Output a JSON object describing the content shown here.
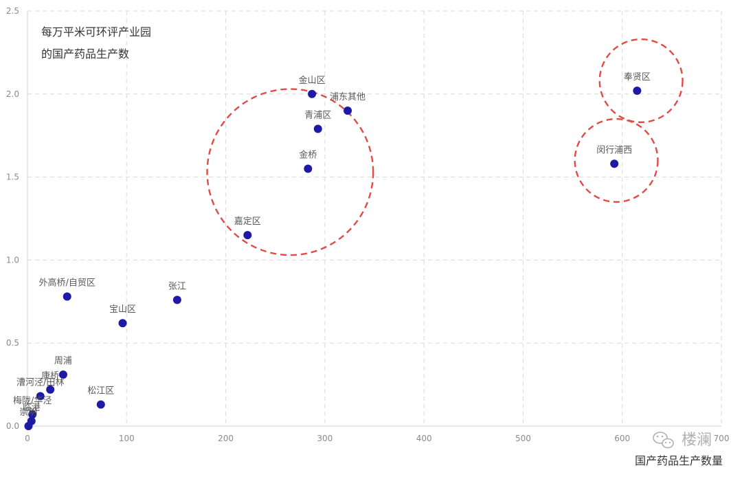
{
  "chart_data": {
    "type": "scatter",
    "title": "",
    "xlabel": "国产药品生产数量",
    "ylabel": "",
    "xlim": [
      0,
      700
    ],
    "ylim": [
      0,
      2.5
    ],
    "x_ticks": [
      0,
      100,
      200,
      300,
      400,
      500,
      600,
      700
    ],
    "y_ticks": [
      0.0,
      0.5,
      1.0,
      1.5,
      2.0,
      2.5
    ],
    "x_tick_labels": [
      "0",
      "100",
      "200",
      "300",
      "400",
      "500",
      "600",
      "700"
    ],
    "y_tick_labels": [
      "0.0",
      "0.5",
      "1.0",
      "1.5",
      "2.0",
      "2.5"
    ],
    "grid": true,
    "point_color": "#1f1aa6",
    "circle_color": "#e04b45",
    "annotation": [
      "每万平米可环评产业园",
      "的国产药品生产数"
    ],
    "points": [
      {
        "label": "奉贤区",
        "x": 615,
        "y": 2.02
      },
      {
        "label": "闵行浦西",
        "x": 592,
        "y": 1.58
      },
      {
        "label": "金山区",
        "x": 287,
        "y": 2.0
      },
      {
        "label": "浦东其他",
        "x": 323,
        "y": 1.9
      },
      {
        "label": "青浦区",
        "x": 293,
        "y": 1.79
      },
      {
        "label": "金桥",
        "x": 283,
        "y": 1.55
      },
      {
        "label": "嘉定区",
        "x": 222,
        "y": 1.15
      },
      {
        "label": "外高桥/自贸区",
        "x": 40,
        "y": 0.78
      },
      {
        "label": "张江",
        "x": 151,
        "y": 0.76
      },
      {
        "label": "宝山区",
        "x": 96,
        "y": 0.62
      },
      {
        "label": "周浦",
        "x": 36,
        "y": 0.31
      },
      {
        "label": "康桥",
        "x": 23,
        "y": 0.22
      },
      {
        "label": "漕河泾/田林",
        "x": 13,
        "y": 0.18
      },
      {
        "label": "松江区",
        "x": 74,
        "y": 0.13
      },
      {
        "label": "梅陇/华泾",
        "x": 5,
        "y": 0.07
      },
      {
        "label": "临港",
        "x": 4,
        "y": 0.03
      },
      {
        "label": "崇明",
        "x": 1,
        "y": 0.0
      }
    ],
    "highlight_circles": [
      {
        "cx": 265,
        "cy": 1.53,
        "r": 0.5
      },
      {
        "cx": 619,
        "cy": 2.08,
        "r": 0.25
      },
      {
        "cx": 594,
        "cy": 1.6,
        "r": 0.25
      }
    ]
  },
  "watermark": {
    "icon": "wechat-icon",
    "text": "楼澜"
  }
}
